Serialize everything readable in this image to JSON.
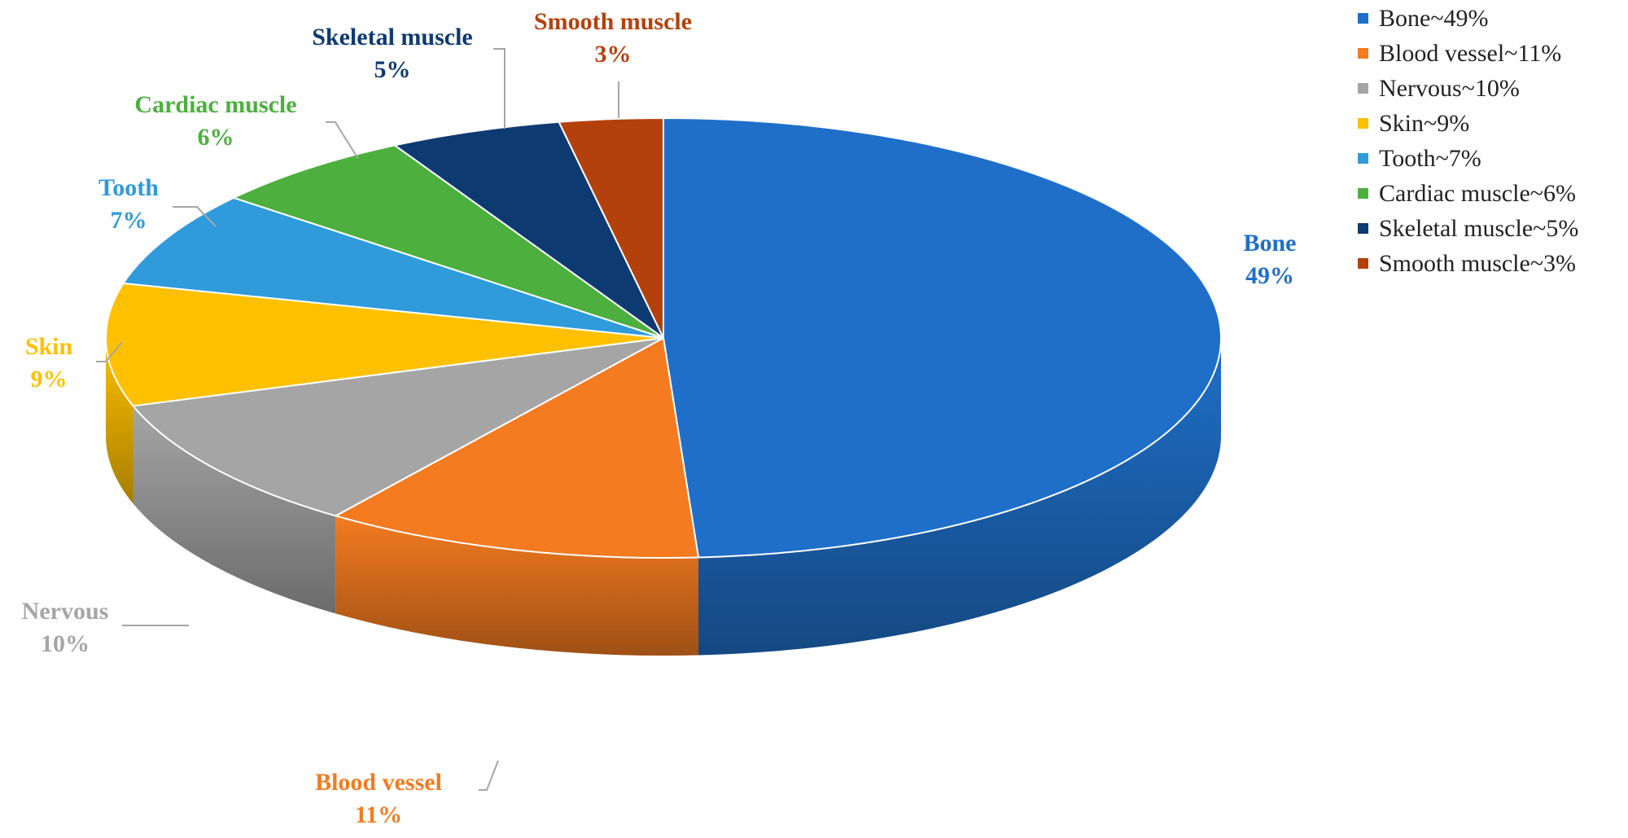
{
  "chart_data": {
    "type": "pie",
    "title": "",
    "legend_position": "top-right",
    "labels_shown": "category name and percentage",
    "slices": [
      {
        "name": "Bone",
        "value": 49,
        "percent_label": "49%",
        "legend_label": "Bone~49%",
        "color": "#1F6FC8"
      },
      {
        "name": "Blood vessel",
        "value": 11,
        "percent_label": "11%",
        "legend_label": "Blood vessel~11%",
        "color": "#F47B20"
      },
      {
        "name": "Nervous",
        "value": 10,
        "percent_label": "10%",
        "legend_label": "Nervous~10%",
        "color": "#A5A5A5"
      },
      {
        "name": "Skin",
        "value": 9,
        "percent_label": "9%",
        "legend_label": "Skin~9%",
        "color": "#FFC000"
      },
      {
        "name": "Tooth",
        "value": 7,
        "percent_label": "7%",
        "legend_label": "Tooth~7%",
        "color": "#2F9BDB"
      },
      {
        "name": "Cardiac muscle",
        "value": 6,
        "percent_label": "6%",
        "legend_label": "Cardiac muscle~6%",
        "color": "#4CAF3E"
      },
      {
        "name": "Skeletal muscle",
        "value": 5,
        "percent_label": "5%",
        "legend_label": "Skeletal muscle~5%",
        "color": "#0E3A72"
      },
      {
        "name": "Smooth muscle",
        "value": 3,
        "percent_label": "3%",
        "legend_label": "Smooth muscle~3%",
        "color": "#B4410B"
      }
    ]
  }
}
